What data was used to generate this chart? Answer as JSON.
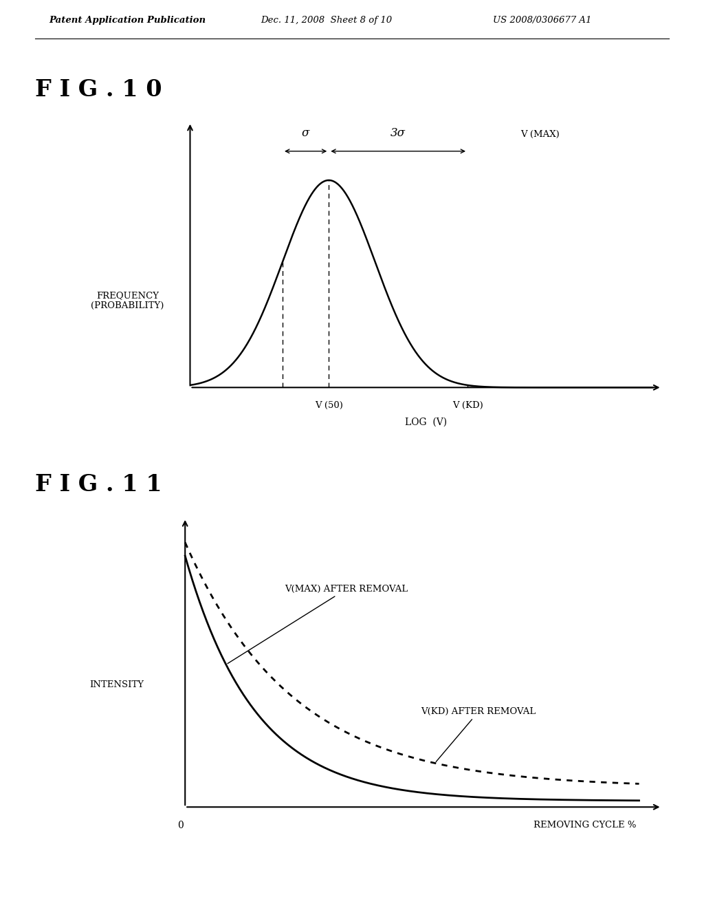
{
  "background_color": "#ffffff",
  "header_left": "Patent Application Publication",
  "header_mid": "Dec. 11, 2008  Sheet 8 of 10",
  "header_right": "US 2008/0306677 A1",
  "fig10_title": "F I G . 1 0",
  "fig11_title": "F I G . 1 1",
  "fig10_ylabel": "FREQUENCY\n(PROBABILITY)",
  "fig10_xlabel": "LOG  (V)",
  "fig10_v50_label": "V (50)",
  "fig10_vkd_label": "V (KD)",
  "fig10_vmax_label": "V (MAX)",
  "fig10_sigma_label": "σ",
  "fig10_3sigma_label": "3σ",
  "fig11_ylabel": "INTENSITY",
  "fig11_xlabel": "REMOVING CYCLE %",
  "fig11_origin_label": "0",
  "fig11_vmax_label": "V(MAX) AFTER REMOVAL",
  "fig11_vkd_label": "V(KD) AFTER REMOVAL",
  "text_color": "#000000",
  "curve_color": "#000000"
}
